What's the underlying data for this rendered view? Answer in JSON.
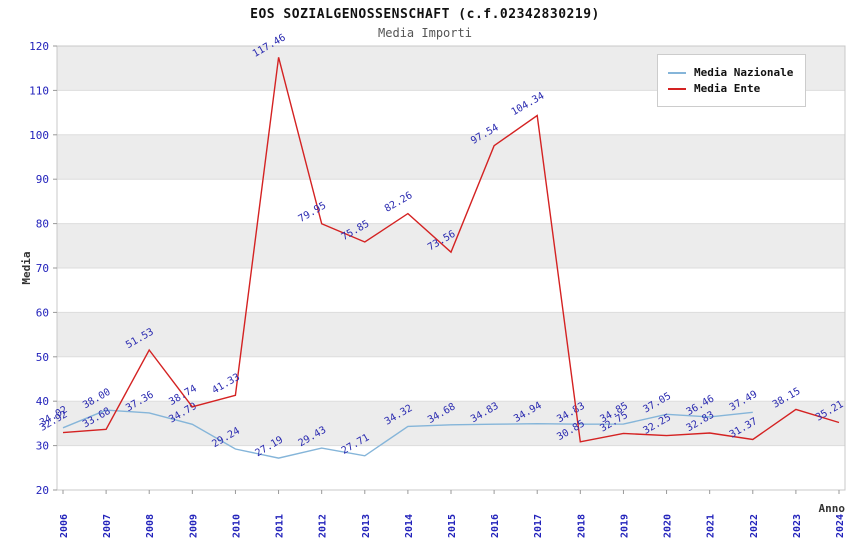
{
  "title": "EOS SOZIALGENOSSENSCHAFT (c.f.02342830219)",
  "subtitle": "Media Importi",
  "ylabel": "Media",
  "xlabel": "Anno",
  "colors": {
    "nazionale_line": "#85b5d9",
    "ente_line": "#d42222",
    "tick_text": "#2222bb",
    "point_label": "#2a2ab0",
    "band_gray": "#ececec",
    "grid_line": "#dddddd",
    "frame_line": "#c8c8c8",
    "axis_text": "#333333"
  },
  "legend": {
    "items": [
      {
        "label": "Media Nazionale",
        "color": "#85b5d9"
      },
      {
        "label": "Media Ente",
        "color": "#d42222"
      }
    ]
  },
  "chart_data": {
    "type": "line",
    "title": "EOS SOZIALGENOSSENSCHAFT (c.f.02342830219)",
    "subtitle": "Media Importi",
    "xlabel": "Anno",
    "ylabel": "Media",
    "ylim": [
      20,
      120
    ],
    "ytick_step": 10,
    "grid": "horizontal-bands",
    "legend_position": "top-right",
    "x": [
      2006,
      2007,
      2008,
      2009,
      2010,
      2011,
      2012,
      2013,
      2014,
      2015,
      2016,
      2017,
      2018,
      2019,
      2020,
      2021,
      2022,
      2023,
      2024
    ],
    "series": [
      {
        "name": "Media Nazionale",
        "color": "#85b5d9",
        "values": [
          34.02,
          38.0,
          37.36,
          34.79,
          29.24,
          27.19,
          29.43,
          27.71,
          34.32,
          34.68,
          34.83,
          34.94,
          34.83,
          34.85,
          37.05,
          36.46,
          37.49,
          null,
          null
        ]
      },
      {
        "name": "Media Ente",
        "color": "#d42222",
        "values": [
          32.92,
          33.68,
          51.53,
          38.74,
          41.33,
          117.46,
          79.95,
          75.85,
          82.26,
          73.56,
          97.54,
          104.34,
          30.85,
          32.75,
          32.25,
          32.83,
          31.37,
          38.15,
          35.21
        ]
      }
    ]
  }
}
